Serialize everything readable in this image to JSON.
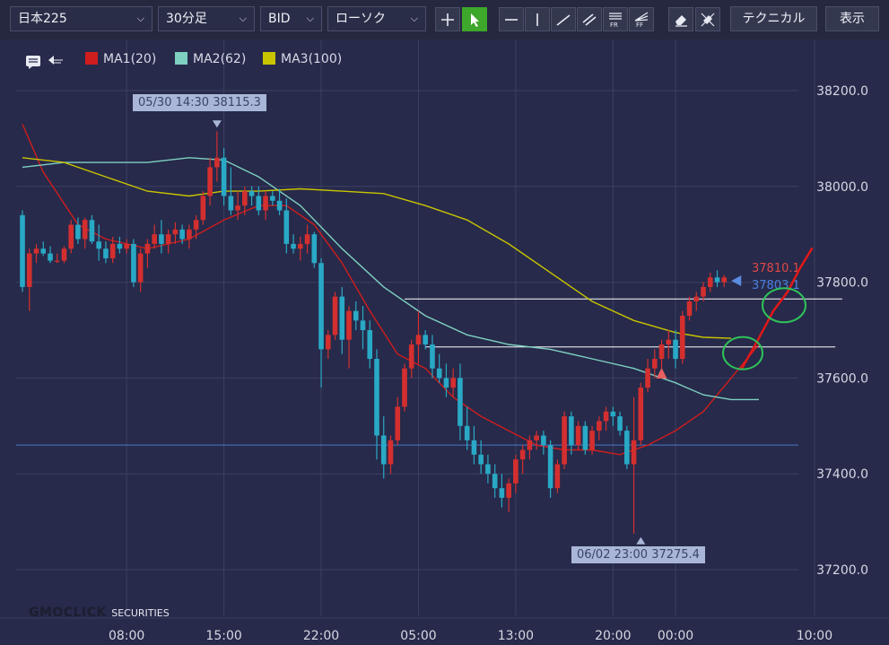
{
  "toolbar": {
    "symbol": "日本225",
    "timeframe": "30分足",
    "price_type": "BID",
    "chart_style": "ローソク",
    "technical_label": "テクニカル",
    "display_label": "表示"
  },
  "colors": {
    "background": "#272a4a",
    "bull": "#d42f2f",
    "bear": "#29a9c5",
    "ma1": "#d01d1d",
    "ma2": "#7ed0c1",
    "ma3": "#c9c400",
    "grid": "#3c4062",
    "axis_text": "#d6d8e4",
    "current_line": "#4a78c8"
  },
  "callouts": {
    "high": "05/30 14:30 38115.3",
    "low": "06/02 23:00 37275.4"
  },
  "price_labels": {
    "bid": "37810.1",
    "ask": "37803.1"
  },
  "logo": {
    "brand": "GMOCLICK",
    "suffix": "SECURITIES"
  },
  "chart_data": {
    "type": "candlestick",
    "symbol": "日本225",
    "interval": "30分足",
    "y_ticks": [
      37200.0,
      37400.0,
      37600.0,
      37800.0,
      38000.0,
      38200.0
    ],
    "y_tick_labels": [
      "37200.0",
      "37400.0",
      "37600.0",
      "37800.0",
      "38000.0",
      "38200.0"
    ],
    "x_tick_labels": [
      "08:00",
      "15:00",
      "22:00",
      "05:00",
      "13:00",
      "20:00",
      "00:00",
      "10:00"
    ],
    "x_tick_bars": [
      15,
      29,
      43,
      57,
      71,
      85,
      94,
      114
    ],
    "ylim": [
      37110,
      38310
    ],
    "visible_bars": 115,
    "legend": [
      {
        "name": "MA1(20)",
        "color": "#d01d1d"
      },
      {
        "name": "MA2(62)",
        "color": "#7ed0c1"
      },
      {
        "name": "MA3(100)",
        "color": "#c9c400"
      }
    ],
    "horizontal_lines": [
      {
        "value": 37460.0,
        "color": "#4a78c8"
      },
      {
        "value": 37765.0,
        "from_bar": 55,
        "to_bar": 118,
        "color": "#ffffff"
      },
      {
        "value": 37665.0,
        "from_bar": 58,
        "to_bar": 117,
        "color": "#ffffff"
      }
    ],
    "high_marker": {
      "time": "05/30 14:30",
      "price": 38115.3,
      "bar": 28
    },
    "low_marker": {
      "time": "06/02 23:00",
      "price": 37275.4,
      "bar": 89
    },
    "candles": [
      [
        37940,
        37950,
        37780,
        37790
      ],
      [
        37790,
        37870,
        37740,
        37860
      ],
      [
        37860,
        37880,
        37840,
        37870
      ],
      [
        37870,
        37885,
        37855,
        37860
      ],
      [
        37860,
        37875,
        37840,
        37845
      ],
      [
        37845,
        37860,
        37840,
        37845
      ],
      [
        37845,
        37875,
        37840,
        37870
      ],
      [
        37870,
        37930,
        37860,
        37920
      ],
      [
        37920,
        37935,
        37880,
        37890
      ],
      [
        37890,
        37935,
        37870,
        37930
      ],
      [
        37930,
        37940,
        37880,
        37885
      ],
      [
        37885,
        37920,
        37845,
        37870
      ],
      [
        37870,
        37885,
        37840,
        37850
      ],
      [
        37850,
        37895,
        37840,
        37880
      ],
      [
        37880,
        37895,
        37860,
        37870
      ],
      [
        37870,
        37890,
        37860,
        37880
      ],
      [
        37880,
        37890,
        37790,
        37800
      ],
      [
        37800,
        37870,
        37780,
        37860
      ],
      [
        37860,
        37890,
        37830,
        37880
      ],
      [
        37880,
        37920,
        37870,
        37900
      ],
      [
        37900,
        37930,
        37860,
        37880
      ],
      [
        37880,
        37910,
        37860,
        37900
      ],
      [
        37900,
        37925,
        37880,
        37910
      ],
      [
        37910,
        37920,
        37880,
        37890
      ],
      [
        37890,
        37920,
        37870,
        37910
      ],
      [
        37910,
        37940,
        37890,
        37930
      ],
      [
        37930,
        37990,
        37920,
        37980
      ],
      [
        37980,
        38060,
        37960,
        38040
      ],
      [
        38040,
        38115,
        38010,
        38060
      ],
      [
        38060,
        38080,
        37960,
        37980
      ],
      [
        37980,
        38040,
        37940,
        37950
      ],
      [
        37950,
        37990,
        37930,
        37960
      ],
      [
        37960,
        38000,
        37940,
        37990
      ],
      [
        37990,
        38000,
        37960,
        37980
      ],
      [
        37980,
        38000,
        37940,
        37950
      ],
      [
        37950,
        37990,
        37930,
        37980
      ],
      [
        37980,
        37990,
        37960,
        37970
      ],
      [
        37970,
        37995,
        37940,
        37950
      ],
      [
        37950,
        37975,
        37860,
        37880
      ],
      [
        37880,
        37900,
        37860,
        37870
      ],
      [
        37870,
        37895,
        37845,
        37880
      ],
      [
        37880,
        37920,
        37860,
        37900
      ],
      [
        37900,
        37905,
        37830,
        37840
      ],
      [
        37840,
        37850,
        37580,
        37660
      ],
      [
        37660,
        37700,
        37640,
        37690
      ],
      [
        37690,
        37780,
        37680,
        37770
      ],
      [
        37770,
        37790,
        37650,
        37680
      ],
      [
        37680,
        37750,
        37620,
        37740
      ],
      [
        37740,
        37760,
        37700,
        37720
      ],
      [
        37720,
        37750,
        37660,
        37700
      ],
      [
        37700,
        37720,
        37620,
        37640
      ],
      [
        37640,
        37660,
        37430,
        37480
      ],
      [
        37480,
        37520,
        37390,
        37420
      ],
      [
        37420,
        37480,
        37400,
        37470
      ],
      [
        37470,
        37560,
        37460,
        37540
      ],
      [
        37540,
        37630,
        37530,
        37620
      ],
      [
        37620,
        37680,
        37600,
        37670
      ],
      [
        37670,
        37740,
        37630,
        37690
      ],
      [
        37690,
        37700,
        37660,
        37670
      ],
      [
        37670,
        37690,
        37600,
        37620
      ],
      [
        37620,
        37650,
        37590,
        37600
      ],
      [
        37600,
        37630,
        37560,
        37580
      ],
      [
        37580,
        37620,
        37560,
        37600
      ],
      [
        37600,
        37630,
        37470,
        37500
      ],
      [
        37500,
        37540,
        37450,
        37470
      ],
      [
        37470,
        37500,
        37420,
        37440
      ],
      [
        37440,
        37470,
        37400,
        37420
      ],
      [
        37420,
        37440,
        37380,
        37400
      ],
      [
        37400,
        37420,
        37350,
        37370
      ],
      [
        37370,
        37400,
        37330,
        37350
      ],
      [
        37350,
        37390,
        37320,
        37380
      ],
      [
        37380,
        37440,
        37360,
        37430
      ],
      [
        37430,
        37460,
        37400,
        37450
      ],
      [
        37450,
        37480,
        37430,
        37470
      ],
      [
        37470,
        37490,
        37450,
        37480
      ],
      [
        37480,
        37490,
        37440,
        37460
      ],
      [
        37460,
        37470,
        37350,
        37370
      ],
      [
        37370,
        37430,
        37360,
        37420
      ],
      [
        37420,
        37530,
        37410,
        37520
      ],
      [
        37520,
        37530,
        37440,
        37460
      ],
      [
        37460,
        37510,
        37450,
        37500
      ],
      [
        37500,
        37510,
        37440,
        37450
      ],
      [
        37450,
        37500,
        37440,
        37490
      ],
      [
        37490,
        37520,
        37470,
        37510
      ],
      [
        37510,
        37540,
        37490,
        37530
      ],
      [
        37530,
        37540,
        37500,
        37520
      ],
      [
        37520,
        37530,
        37480,
        37490
      ],
      [
        37490,
        37500,
        37410,
        37420
      ],
      [
        37420,
        37560,
        37275,
        37470
      ],
      [
        37470,
        37590,
        37460,
        37580
      ],
      [
        37580,
        37640,
        37570,
        37620
      ],
      [
        37620,
        37660,
        37600,
        37640
      ],
      [
        37640,
        37680,
        37620,
        37670
      ],
      [
        37670,
        37700,
        37640,
        37680
      ],
      [
        37680,
        37700,
        37620,
        37640
      ],
      [
        37640,
        37740,
        37630,
        37730
      ],
      [
        37730,
        37770,
        37720,
        37760
      ],
      [
        37760,
        37780,
        37740,
        37770
      ],
      [
        37770,
        37800,
        37760,
        37790
      ],
      [
        37790,
        37820,
        37780,
        37810
      ],
      [
        37810,
        37825,
        37790,
        37800
      ],
      [
        37800,
        37815,
        37790,
        37810
      ]
    ],
    "series": [
      {
        "name": "MA1(20)",
        "color": "#d01d1d",
        "values": [
          [
            0,
            38130
          ],
          [
            3,
            38030
          ],
          [
            8,
            37920
          ],
          [
            12,
            37890
          ],
          [
            18,
            37870
          ],
          [
            24,
            37890
          ],
          [
            29,
            37930
          ],
          [
            34,
            37960
          ],
          [
            38,
            37960
          ],
          [
            42,
            37920
          ],
          [
            46,
            37840
          ],
          [
            50,
            37740
          ],
          [
            54,
            37650
          ],
          [
            58,
            37620
          ],
          [
            62,
            37560
          ],
          [
            66,
            37520
          ],
          [
            70,
            37490
          ],
          [
            74,
            37460
          ],
          [
            78,
            37450
          ],
          [
            82,
            37450
          ],
          [
            86,
            37440
          ],
          [
            90,
            37460
          ],
          [
            94,
            37490
          ],
          [
            98,
            37530
          ],
          [
            102,
            37600
          ],
          [
            106,
            37670
          ]
        ]
      },
      {
        "name": "MA2(62)",
        "color": "#7ed0c1",
        "values": [
          [
            0,
            38040
          ],
          [
            6,
            38050
          ],
          [
            12,
            38050
          ],
          [
            18,
            38050
          ],
          [
            24,
            38060
          ],
          [
            29,
            38055
          ],
          [
            34,
            38020
          ],
          [
            40,
            37960
          ],
          [
            46,
            37870
          ],
          [
            52,
            37790
          ],
          [
            58,
            37730
          ],
          [
            64,
            37690
          ],
          [
            70,
            37670
          ],
          [
            76,
            37660
          ],
          [
            82,
            37640
          ],
          [
            88,
            37620
          ],
          [
            94,
            37590
          ],
          [
            98,
            37565
          ],
          [
            102,
            37555
          ],
          [
            106,
            37555
          ]
        ]
      },
      {
        "name": "MA3(100)",
        "color": "#c9c400",
        "values": [
          [
            0,
            38060
          ],
          [
            6,
            38050
          ],
          [
            12,
            38020
          ],
          [
            18,
            37990
          ],
          [
            24,
            37980
          ],
          [
            29,
            37990
          ],
          [
            34,
            37990
          ],
          [
            40,
            37995
          ],
          [
            46,
            37990
          ],
          [
            52,
            37985
          ],
          [
            58,
            37960
          ],
          [
            64,
            37930
          ],
          [
            70,
            37880
          ],
          [
            76,
            37820
          ],
          [
            82,
            37760
          ],
          [
            88,
            37720
          ],
          [
            94,
            37695
          ],
          [
            98,
            37685
          ],
          [
            102,
            37683
          ]
        ]
      }
    ]
  }
}
